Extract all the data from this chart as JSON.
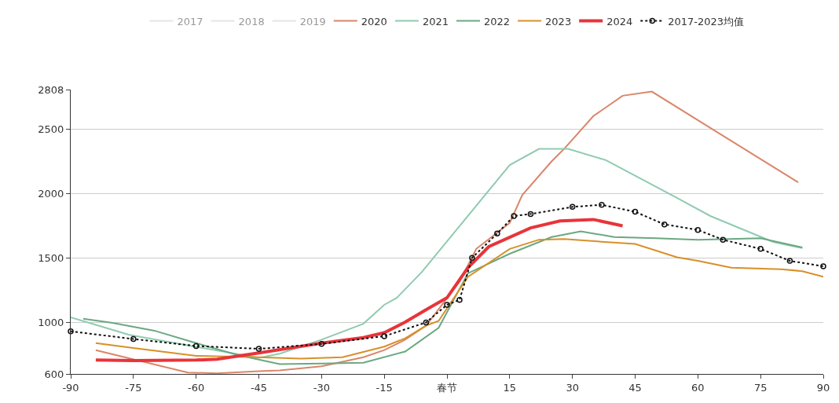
{
  "chart_data": {
    "type": "line",
    "xlim": [
      -90,
      90
    ],
    "xticks": [
      -90,
      -75,
      -60,
      -45,
      -30,
      -15,
      {
        "value": 0,
        "label": "春节"
      },
      15,
      30,
      45,
      60,
      75,
      90
    ],
    "ylim": [
      600,
      2808
    ],
    "yticks": [
      600,
      1000,
      1500,
      2000,
      2500,
      2808
    ],
    "grid": "y",
    "legend": "top",
    "marker": "none",
    "line_style": "solid",
    "series": [
      {
        "name": "2017",
        "color": "#cccccc"
      },
      {
        "name": "2018",
        "color": "#cccccc"
      },
      {
        "name": "2019",
        "color": "#cccccc"
      },
      {
        "name": "2020",
        "color": "#d9866a",
        "x": [
          -84,
          -62,
          -55,
          -45,
          -40,
          -30,
          -20,
          -15,
          -10,
          -5,
          3,
          7,
          15,
          18,
          25,
          28,
          35,
          42,
          49,
          63,
          84
        ],
        "values": [
          785,
          611,
          605,
          622,
          627,
          660,
          730,
          785,
          866,
          975,
          1316,
          1571,
          1772,
          1989,
          2250,
          2347,
          2602,
          2760,
          2792,
          2510,
          2087
        ]
      },
      {
        "name": "2021",
        "color": "#8fcbb0",
        "x": [
          -90,
          -76,
          -60,
          -45,
          -40,
          -30,
          -20,
          -15,
          -12,
          -6,
          15,
          22,
          29,
          38,
          55,
          63,
          78,
          85
        ],
        "values": [
          1040,
          904,
          811,
          725,
          757,
          866,
          990,
          1137,
          1191,
          1392,
          2222,
          2347,
          2347,
          2260,
          1967,
          1826,
          1625,
          1577
        ]
      },
      {
        "name": "2022",
        "color": "#6aa882",
        "x": [
          -87,
          -80,
          -70,
          -60,
          -50,
          -40,
          -30,
          -20,
          -10,
          -2,
          5,
          15,
          25,
          32,
          40,
          50,
          60,
          75,
          85
        ],
        "values": [
          1028,
          996,
          936,
          839,
          746,
          676,
          681,
          687,
          774,
          958,
          1381,
          1533,
          1663,
          1707,
          1663,
          1653,
          1642,
          1653,
          1582
        ]
      },
      {
        "name": "2023",
        "color": "#d8902a",
        "x": [
          -84,
          -75,
          -60,
          -45,
          -35,
          -25,
          -15,
          -10,
          -5,
          -2,
          5,
          15,
          22,
          28,
          45,
          55,
          60,
          68,
          80,
          85,
          90
        ],
        "values": [
          839,
          801,
          741,
          730,
          719,
          730,
          812,
          877,
          975,
          1012,
          1354,
          1571,
          1642,
          1647,
          1609,
          1506,
          1478,
          1425,
          1412,
          1398,
          1354
        ]
      },
      {
        "name": "2024",
        "color": "#e8343a",
        "x": [
          -84,
          -75,
          -60,
          -55,
          -45,
          -30,
          -20,
          -15,
          -10,
          -5,
          0,
          5,
          10,
          20,
          27,
          35,
          42
        ],
        "values": [
          708,
          703,
          708,
          714,
          763,
          839,
          882,
          920,
          1002,
          1099,
          1191,
          1425,
          1588,
          1734,
          1788,
          1799,
          1750
        ]
      },
      {
        "name": "2017-2023均值",
        "color": "#111111",
        "line_style": "dotted",
        "marker": "circle",
        "x": [
          -90,
          -75,
          -60,
          -45,
          -30,
          -15,
          -5,
          0,
          3,
          6,
          12,
          16,
          20,
          30,
          37,
          45,
          52,
          60,
          66,
          75,
          82,
          90
        ],
        "values": [
          931,
          871,
          817,
          795,
          833,
          893,
          1000,
          1137,
          1175,
          1501,
          1690,
          1826,
          1842,
          1897,
          1913,
          1859,
          1761,
          1718,
          1642,
          1571,
          1478,
          1436
        ]
      }
    ]
  }
}
